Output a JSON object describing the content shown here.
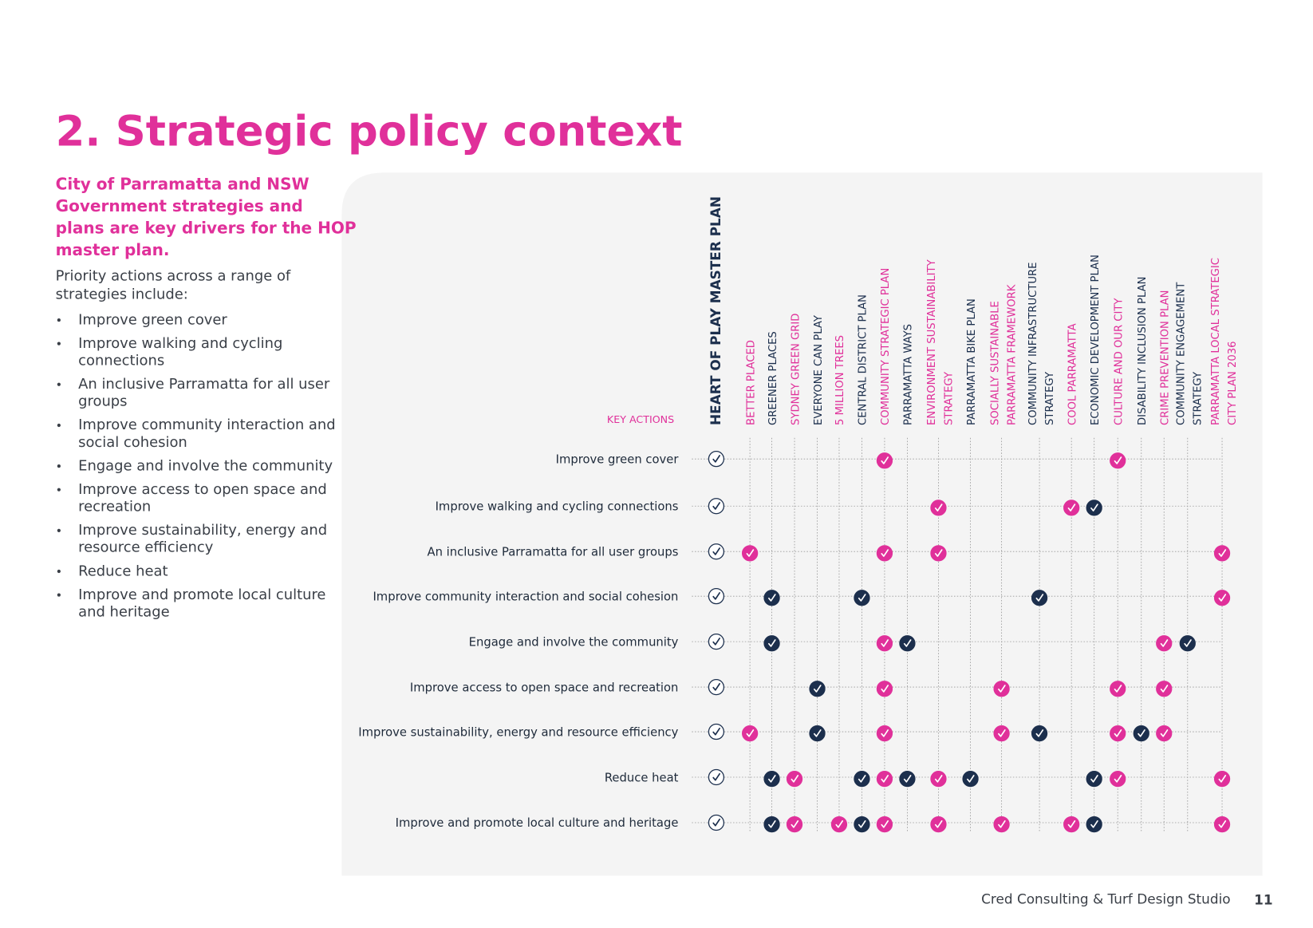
{
  "header": {
    "title": "2. Strategic policy context"
  },
  "intro": {
    "lead": [
      "City of Parramatta and NSW",
      "Government strategies and",
      "plans are key drivers for the HOP",
      "master plan."
    ],
    "text": [
      "Priority actions across a range of",
      "strategies include:"
    ],
    "bullets": [
      [
        "Improve green cover"
      ],
      [
        "Improve walking and cycling",
        "connections"
      ],
      [
        "An inclusive Parramatta for all user",
        "groups"
      ],
      [
        "Improve community interaction and",
        "social cohesion"
      ],
      [
        "Engage and involve the community"
      ],
      [
        "Improve access to open space and",
        "recreation"
      ],
      [
        "Improve sustainability, energy and",
        "resource efficiency"
      ],
      [
        "Reduce heat"
      ],
      [
        "Improve and promote local culture",
        "and heritage"
      ]
    ]
  },
  "matrix": {
    "key_label": "KEY ACTIONS",
    "columns": [
      {
        "label": [
          "HEART OF PLAY MASTER PLAN"
        ],
        "color": "#1c2f4d"
      },
      {
        "label": [
          "BETTER PLACED"
        ],
        "color": "#e0309a"
      },
      {
        "label": [
          "GREENER PLACES"
        ],
        "color": "#1c2f4d"
      },
      {
        "label": [
          "SYDNEY GREEN GRID"
        ],
        "color": "#e0309a"
      },
      {
        "label": [
          "EVERYONE CAN PLAY"
        ],
        "color": "#1c2f4d"
      },
      {
        "label": [
          "5 MILLION TREES"
        ],
        "color": "#e0309a"
      },
      {
        "label": [
          "CENTRAL DISTRICT PLAN"
        ],
        "color": "#1c2f4d"
      },
      {
        "label": [
          "COMMUNITY STRATEGIC PLAN"
        ],
        "color": "#e0309a"
      },
      {
        "label": [
          "PARRAMATTA WAYS"
        ],
        "color": "#1c2f4d"
      },
      {
        "label": [
          "ENVIRONMENT SUSTAINABILITY",
          "STRATEGY"
        ],
        "color": "#e0309a"
      },
      {
        "label": [
          "PARRAMATTA BIKE PLAN"
        ],
        "color": "#1c2f4d"
      },
      {
        "label": [
          "SOCIALLY SUSTAINABLE",
          "PARRAMATTA FRAMEWORK"
        ],
        "color": "#e0309a"
      },
      {
        "label": [
          "COMMUNITY INFRASTRUCTURE",
          "STRATEGY"
        ],
        "color": "#1c2f4d"
      },
      {
        "label": [
          "COOL PARRAMATTA"
        ],
        "color": "#e0309a"
      },
      {
        "label": [
          "ECONOMIC DEVELOPMENT PLAN"
        ],
        "color": "#1c2f4d"
      },
      {
        "label": [
          "CULTURE AND OUR CITY"
        ],
        "color": "#e0309a"
      },
      {
        "label": [
          "DISABILITY INCLUSION PLAN"
        ],
        "color": "#1c2f4d"
      },
      {
        "label": [
          "CRIME PREVENTION PLAN"
        ],
        "color": "#e0309a"
      },
      {
        "label": [
          "COMMUNITY ENGAGEMENT",
          "STRATEGY"
        ],
        "color": "#1c2f4d"
      },
      {
        "label": [
          "PARRAMATTA LOCAL STRATEGIC",
          "CITY PLAN 2036"
        ],
        "color": "#e0309a"
      }
    ],
    "rows": [
      {
        "label": "Improve green cover",
        "marks": [
          "#ffffff",
          null,
          null,
          null,
          null,
          null,
          null,
          "#e0309a",
          null,
          null,
          null,
          null,
          null,
          null,
          null,
          "#e0309a",
          null,
          null,
          null,
          null
        ]
      },
      {
        "label": "Improve walking and cycling connections",
        "marks": [
          "#ffffff",
          null,
          null,
          null,
          null,
          null,
          null,
          null,
          null,
          "#e0309a",
          null,
          null,
          null,
          "#e0309a",
          "#1c2f4d",
          null,
          null,
          null,
          null,
          null
        ]
      },
      {
        "label": "An inclusive Parramatta for all user groups",
        "marks": [
          "#ffffff",
          "#e0309a",
          null,
          null,
          null,
          null,
          null,
          "#e0309a",
          null,
          "#e0309a",
          null,
          null,
          null,
          null,
          null,
          null,
          null,
          null,
          null,
          "#e0309a"
        ]
      },
      {
        "label": "Improve community interaction and social cohesion",
        "marks": [
          "#ffffff",
          null,
          "#1c2f4d",
          null,
          null,
          null,
          "#1c2f4d",
          null,
          null,
          null,
          null,
          null,
          "#1c2f4d",
          null,
          null,
          null,
          null,
          null,
          null,
          "#e0309a"
        ]
      },
      {
        "label": "Engage and involve the community",
        "marks": [
          "#ffffff",
          null,
          "#1c2f4d",
          null,
          null,
          null,
          null,
          "#e0309a",
          "#1c2f4d",
          null,
          null,
          null,
          null,
          null,
          null,
          null,
          null,
          "#e0309a",
          "#1c2f4d",
          null
        ]
      },
      {
        "label": "Improve access to open space and recreation",
        "marks": [
          "#ffffff",
          null,
          null,
          null,
          "#1c2f4d",
          null,
          null,
          "#e0309a",
          null,
          null,
          null,
          "#e0309a",
          null,
          null,
          null,
          "#e0309a",
          null,
          "#e0309a",
          null,
          null
        ]
      },
      {
        "label": "Improve sustainability, energy and resource efficiency",
        "marks": [
          "#ffffff",
          "#e0309a",
          null,
          null,
          "#1c2f4d",
          null,
          null,
          "#e0309a",
          null,
          null,
          null,
          "#e0309a",
          "#1c2f4d",
          null,
          null,
          "#e0309a",
          "#1c2f4d",
          "#e0309a",
          null,
          null
        ]
      },
      {
        "label": "Reduce heat",
        "marks": [
          "#ffffff",
          null,
          "#1c2f4d",
          "#e0309a",
          null,
          null,
          "#1c2f4d",
          "#e0309a",
          "#1c2f4d",
          "#e0309a",
          "#1c2f4d",
          null,
          null,
          null,
          "#1c2f4d",
          "#e0309a",
          null,
          null,
          null,
          "#e0309a"
        ]
      },
      {
        "label": "Improve and promote local culture and heritage",
        "marks": [
          "#ffffff",
          null,
          "#1c2f4d",
          "#e0309a",
          null,
          "#e0309a",
          "#1c2f4d",
          "#e0309a",
          null,
          "#e0309a",
          null,
          "#e0309a",
          null,
          "#e0309a",
          "#1c2f4d",
          null,
          null,
          null,
          null,
          "#e0309a"
        ]
      }
    ]
  },
  "footer": {
    "credit": "Cred Consulting & Turf Design Studio",
    "page": "11"
  }
}
